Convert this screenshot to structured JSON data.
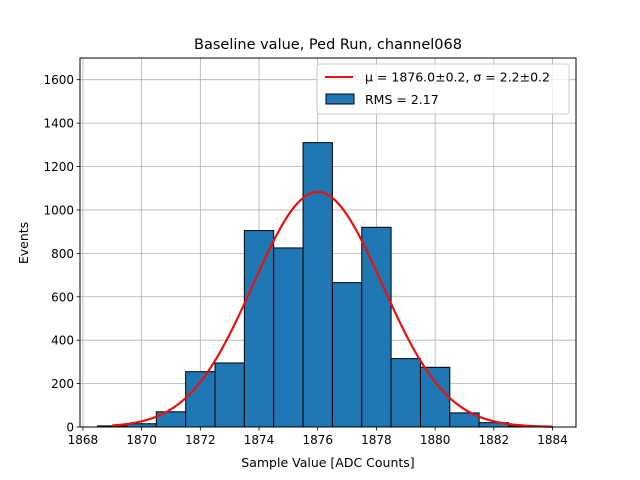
{
  "chart_data": {
    "type": "bar",
    "title": "Baseline value, Ped Run, channel068",
    "xlabel": "Sample Value [ADC Counts]",
    "ylabel": "Events",
    "xlim": [
      1867.9,
      1884.8
    ],
    "ylim": [
      0,
      1700
    ],
    "grid": true,
    "legend_position": "top-right",
    "x_ticks": [
      "1868",
      "1870",
      "1872",
      "1874",
      "1876",
      "1878",
      "1880",
      "1882",
      "1884"
    ],
    "y_ticks": [
      "0",
      "200",
      "400",
      "600",
      "800",
      "1000",
      "1200",
      "1400",
      "1600"
    ],
    "histogram": {
      "name": "RMS = 2.17",
      "color": "#1f77b4",
      "bins": [
        {
          "x0": 1868.5,
          "x1": 1869.5,
          "value": 5
        },
        {
          "x0": 1869.5,
          "x1": 1870.5,
          "value": 15
        },
        {
          "x0": 1870.5,
          "x1": 1871.5,
          "value": 70
        },
        {
          "x0": 1871.5,
          "x1": 1872.5,
          "value": 255
        },
        {
          "x0": 1872.5,
          "x1": 1873.5,
          "value": 295
        },
        {
          "x0": 1873.5,
          "x1": 1874.5,
          "value": 905
        },
        {
          "x0": 1874.5,
          "x1": 1875.5,
          "value": 825
        },
        {
          "x0": 1875.5,
          "x1": 1876.5,
          "value": 1310
        },
        {
          "x0": 1876.5,
          "x1": 1877.5,
          "value": 665
        },
        {
          "x0": 1877.5,
          "x1": 1878.5,
          "value": 920
        },
        {
          "x0": 1878.5,
          "x1": 1879.5,
          "value": 315
        },
        {
          "x0": 1879.5,
          "x1": 1880.5,
          "value": 275
        },
        {
          "x0": 1880.5,
          "x1": 1881.5,
          "value": 65
        },
        {
          "x0": 1881.5,
          "x1": 1882.5,
          "value": 20
        },
        {
          "x0": 1882.5,
          "x1": 1883.5,
          "value": 5
        }
      ]
    },
    "fit": {
      "label": "μ = 1876.0±0.2, σ = 2.2±0.2",
      "color": "#e8110f",
      "mu": 1876.0,
      "sigma": 2.2,
      "amplitude": 1083,
      "x_range": [
        1869,
        1884
      ]
    }
  }
}
